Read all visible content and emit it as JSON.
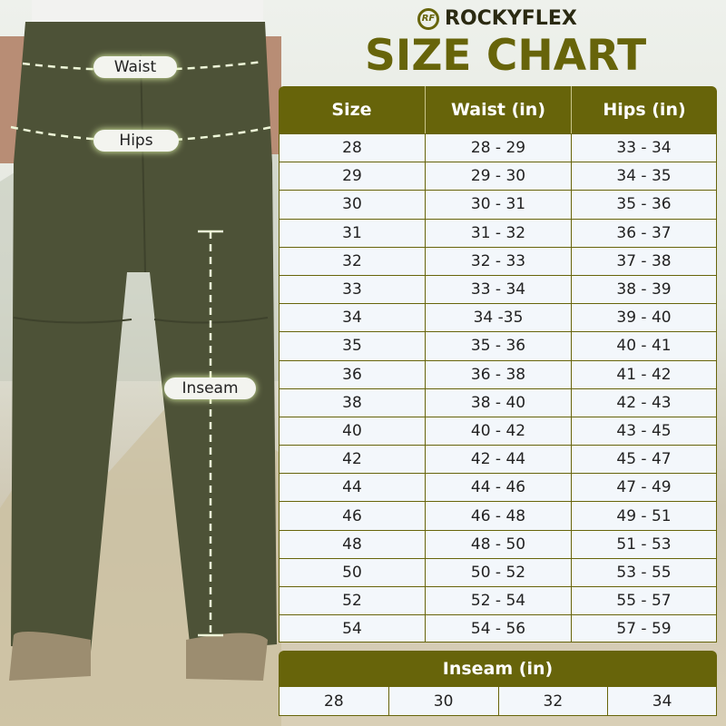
{
  "brand": {
    "name": "ROCKYFLEX",
    "logo_letters": "RF"
  },
  "title": "SIZE CHART",
  "colors": {
    "accent": "#67640a",
    "cell_bg": "#f3f7fb",
    "pants": "#4d5237"
  },
  "measure_labels": {
    "waist": "Waist",
    "hips": "Hips",
    "inseam": "Inseam"
  },
  "size_table": {
    "headers": [
      "Size",
      "Waist (in)",
      "Hips (in)"
    ],
    "rows": [
      [
        "28",
        "28 - 29",
        "33 - 34"
      ],
      [
        "29",
        "29 - 30",
        "34 - 35"
      ],
      [
        "30",
        "30 - 31",
        "35 - 36"
      ],
      [
        "31",
        "31 - 32",
        "36 - 37"
      ],
      [
        "32",
        "32 - 33",
        "37 - 38"
      ],
      [
        "33",
        "33 - 34",
        "38 - 39"
      ],
      [
        "34",
        "34 -35",
        "39 - 40"
      ],
      [
        "35",
        "35 - 36",
        "40 - 41"
      ],
      [
        "36",
        "36 - 38",
        "41 - 42"
      ],
      [
        "38",
        "38 - 40",
        "42 - 43"
      ],
      [
        "40",
        "40 - 42",
        "43 - 45"
      ],
      [
        "42",
        "42 - 44",
        "45 - 47"
      ],
      [
        "44",
        "44 - 46",
        "47 - 49"
      ],
      [
        "46",
        "46 - 48",
        "49 - 51"
      ],
      [
        "48",
        "48 - 50",
        "51 - 53"
      ],
      [
        "50",
        "50 - 52",
        "53 - 55"
      ],
      [
        "52",
        "52 - 54",
        "55 - 57"
      ],
      [
        "54",
        "54 - 56",
        "57 - 59"
      ]
    ]
  },
  "inseam_table": {
    "header": "Inseam (in)",
    "values": [
      "28",
      "30",
      "32",
      "34"
    ]
  }
}
